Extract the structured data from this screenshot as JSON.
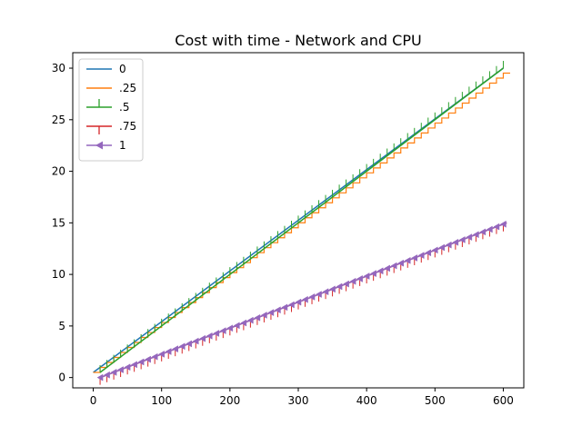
{
  "chart_data": {
    "type": "line",
    "title": "Cost with time - Network and CPU",
    "xlabel": "",
    "ylabel": "",
    "xlim": [
      -30,
      630
    ],
    "ylim": [
      -1,
      31.5
    ],
    "xticks": [
      0,
      100,
      200,
      300,
      400,
      500,
      600
    ],
    "yticks": [
      0,
      5,
      10,
      15,
      20,
      25,
      30
    ],
    "grid": false,
    "legend": "upper-left",
    "series": [
      {
        "name": "0",
        "color": "#1f77b4",
        "marker": "none",
        "x": [
          0,
          600
        ],
        "y": [
          0.5,
          30
        ]
      },
      {
        "name": ".25",
        "color": "#ff7f0e",
        "marker": "stairs",
        "x": [
          0,
          610
        ],
        "y": [
          0.5,
          30
        ]
      },
      {
        "name": ".5",
        "color": "#2ca02c",
        "marker": "tick-up",
        "x": [
          10,
          600
        ],
        "y": [
          0.5,
          30
        ]
      },
      {
        "name": ".75",
        "color": "#d62728",
        "marker": "tick-down",
        "x": [
          10,
          605
        ],
        "y": [
          0,
          15
        ]
      },
      {
        "name": "1",
        "color": "#9467bd",
        "marker": "triangle-left",
        "x": [
          10,
          605
        ],
        "y": [
          0,
          15
        ]
      }
    ]
  }
}
